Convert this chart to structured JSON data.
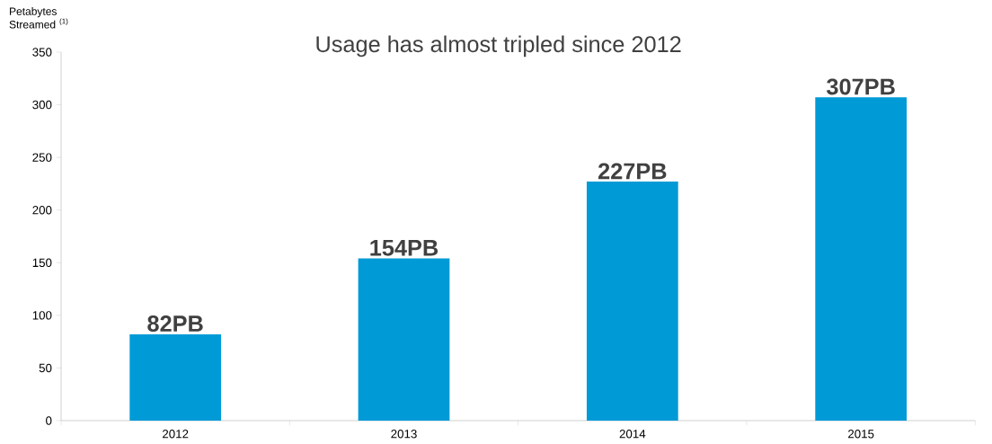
{
  "chart_data": {
    "type": "bar",
    "title": "Usage has almost tripled since 2012",
    "ylabel": "Petabytes Streamed $^{(1)}$",
    "categories": [
      "2012",
      "2013",
      "2014",
      "2015"
    ],
    "values": [
      82,
      154,
      227,
      307
    ],
    "value_labels": [
      "82PB",
      "154PB",
      "227PB",
      "307PB"
    ],
    "color": "#009ad6",
    "ylim": [
      0,
      350
    ],
    "yticks": [
      0,
      50,
      100,
      150,
      200,
      250,
      300,
      350
    ],
    "grid": false
  }
}
